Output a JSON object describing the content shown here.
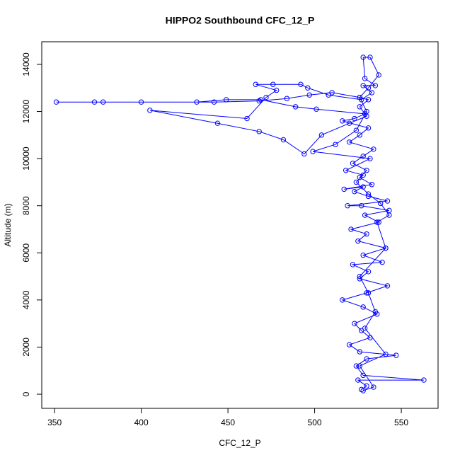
{
  "chart_data": {
    "type": "line",
    "title": "HIPPO2 Southbound CFC_12_P",
    "x_label": "CFC_12_P",
    "y_label": "Altitude (m)",
    "color": "#0000ff",
    "markers": true,
    "xlim": [
      342.6,
      571.2
    ],
    "ylim": [
      -600,
      14960
    ],
    "xticks": [
      350,
      400,
      450,
      500,
      550
    ],
    "yticks": [
      0,
      2000,
      4000,
      6000,
      8000,
      10000,
      12000,
      14000
    ],
    "x": [
      527,
      530,
      525,
      563,
      528,
      524,
      530,
      547,
      526,
      520,
      532,
      527,
      523,
      536,
      528,
      516,
      530,
      542,
      526,
      531,
      522,
      539,
      528,
      541,
      525,
      530,
      521,
      537,
      529,
      543,
      527,
      519,
      542,
      531,
      523,
      528,
      517,
      533,
      526,
      530,
      522,
      528,
      534,
      520,
      526,
      531,
      516,
      523,
      529,
      501,
      489,
      469,
      449,
      432,
      400,
      378,
      373,
      351,
      442,
      468,
      484,
      497,
      510,
      526,
      531,
      526,
      530,
      520,
      504,
      494,
      482,
      468,
      444,
      405,
      461,
      472,
      478,
      466,
      476,
      492,
      496,
      508,
      527,
      533,
      528,
      535,
      529,
      528,
      532,
      537,
      531,
      526,
      530,
      524,
      512,
      499,
      532,
      518,
      528,
      524,
      531,
      538,
      543,
      536,
      541,
      526,
      531,
      535,
      529,
      541,
      526,
      534,
      528
    ],
    "values": [
      200,
      350,
      600,
      600,
      800,
      1200,
      1500,
      1650,
      1800,
      2100,
      2400,
      2700,
      3000,
      3400,
      3700,
      4000,
      4300,
      4600,
      4900,
      5200,
      5500,
      5600,
      5900,
      6200,
      6500,
      6800,
      7000,
      7300,
      7600,
      7800,
      8000,
      8000,
      8200,
      8400,
      8600,
      8800,
      8700,
      8900,
      9200,
      9500,
      9800,
      10100,
      10400,
      10700,
      11000,
      11300,
      11600,
      11700,
      11900,
      12100,
      12200,
      12500,
      12500,
      12400,
      12400,
      12400,
      12400,
      12400,
      12400,
      12450,
      12550,
      12700,
      12800,
      12600,
      12500,
      12200,
      11800,
      11500,
      11000,
      10200,
      10800,
      11150,
      11500,
      12050,
      11700,
      12600,
      12900,
      13150,
      13150,
      13150,
      13000,
      12700,
      12500,
      12800,
      13100,
      13100,
      13400,
      14300,
      14300,
      13550,
      13000,
      12600,
      12000,
      11200,
      10600,
      10300,
      10000,
      9500,
      9300,
      9000,
      8500,
      8100,
      7600,
      7300,
      6200,
      5000,
      4300,
      3500,
      2800,
      1700,
      1200,
      300,
      150
    ]
  }
}
